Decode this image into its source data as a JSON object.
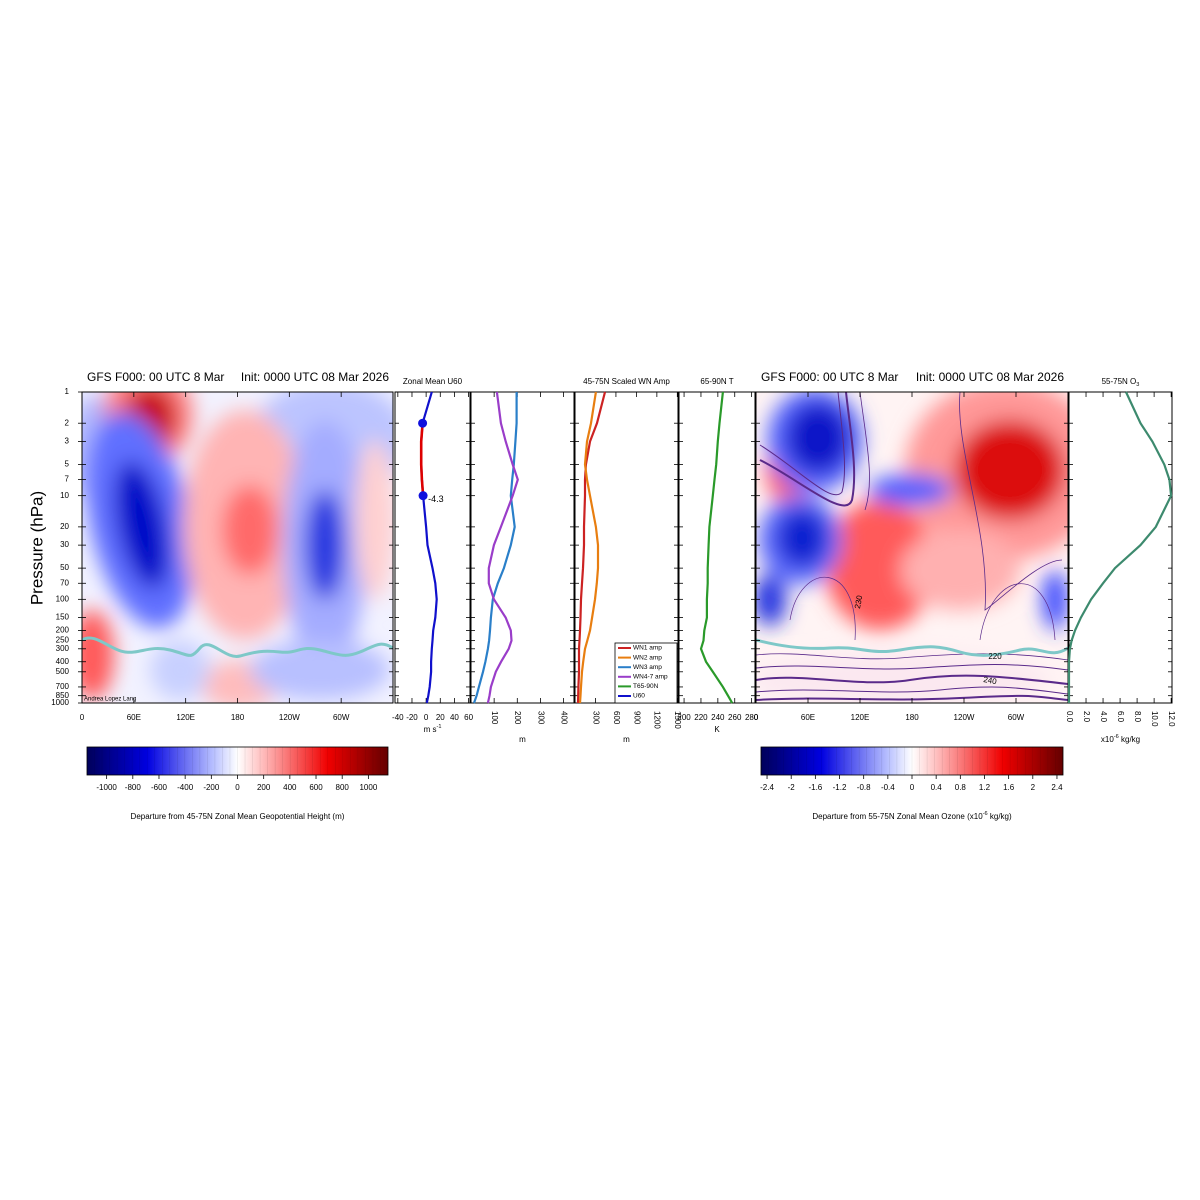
{
  "pressure_axis": {
    "label": "Pressure (hPa)",
    "log": true,
    "ylim": [
      1000,
      1
    ],
    "yticks": [
      1,
      2,
      3,
      5,
      7,
      10,
      20,
      30,
      50,
      70,
      100,
      150,
      200,
      250,
      300,
      400,
      500,
      700,
      850,
      1000
    ]
  },
  "levels": [
    1,
    2,
    3,
    5,
    7,
    10,
    20,
    30,
    50,
    70,
    100,
    150,
    200,
    250,
    300,
    400,
    500,
    700,
    850,
    1000
  ],
  "chart_data": [
    {
      "type": "contour",
      "title_left": "GFS F000: 00 UTC 8 Mar",
      "title_right": "Init: 0000 UTC 08 Mar 2026",
      "credit": "Andrea Lopez Lang",
      "xlim": [
        0,
        360
      ],
      "xticks": [
        0,
        {
          "value": 60,
          "label": "60E"
        },
        {
          "value": 120,
          "label": "120E"
        },
        180,
        {
          "value": 240,
          "label": "120W"
        },
        {
          "value": 300,
          "label": "60W"
        }
      ],
      "tropopause_color": "#7ec8c8",
      "colorbar": {
        "lim": [
          -1150,
          1150
        ],
        "ticks": [
          -1000,
          -800,
          -600,
          -400,
          -200,
          0,
          200,
          400,
          600,
          800,
          1000
        ],
        "label": {
          "text": "Departure from 45-75N Zonal Mean Geopotential Height (m)"
        }
      }
    },
    {
      "type": "line",
      "title": "Zonal Mean U60",
      "xlim": [
        -44,
        62
      ],
      "xticks": [
        -40,
        -20,
        0,
        20,
        40,
        60
      ],
      "xlabel": {
        "text": "m s",
        "sup": "-1"
      },
      "negative_color": "#dd0000",
      "series": [
        {
          "name": "U60",
          "color": "#1010cc",
          "values": [
            8,
            -5,
            -7,
            -7,
            -6,
            -4.3,
            0,
            2,
            9,
            13,
            15,
            13,
            10,
            9,
            8,
            7,
            7,
            5,
            3,
            1
          ]
        }
      ]
    },
    {
      "type": "line",
      "xlim": [
        0,
        445
      ],
      "xticks": [
        100,
        200,
        300,
        400
      ],
      "xtick_rotate": true,
      "xlabel": {
        "text": "m"
      },
      "series": [
        {
          "name": "WN3 amp",
          "color": "#2a7fc9",
          "values": [
            197,
            197,
            192,
            185,
            178,
            172,
            189,
            172,
            142,
            116,
            94,
            86,
            82,
            78,
            73,
            62,
            52,
            34,
            24,
            13
          ]
        },
        {
          "name": "WN4-7 amp",
          "color": "#9a3dc9",
          "values": [
            112,
            129,
            150,
            180,
            202,
            180,
            129,
            99,
            77,
            77,
            99,
            150,
            172,
            175,
            163,
            130,
            107,
            86,
            80,
            73
          ]
        }
      ]
    },
    {
      "type": "line",
      "title": "45-75N Scaled WN Amp",
      "xlim": [
        0,
        1510
      ],
      "xticks": [
        300,
        600,
        900,
        1200,
        1500
      ],
      "xtick_rotate": true,
      "xlabel": {
        "text": "m"
      },
      "series": [
        {
          "name": "WN1 amp",
          "color": "#cc2222",
          "values": [
            440,
            322,
            220,
            160,
            146,
            146,
            132,
            132,
            117,
            102,
            88,
            80,
            73,
            66,
            59,
            59,
            59,
            50,
            47,
            44
          ]
        },
        {
          "name": "WN2 amp",
          "color": "#e87e10",
          "values": [
            307,
            234,
            176,
            146,
            176,
            220,
            307,
            337,
            337,
            320,
            293,
            250,
            220,
            180,
            146,
            120,
            102,
            88,
            80,
            73
          ]
        }
      ]
    },
    {
      "type": "line",
      "title": "65-90N T",
      "xlim": [
        194,
        284
      ],
      "xticks": [
        200,
        220,
        240,
        260,
        280
      ],
      "xlabel": {
        "text": "K"
      },
      "series": [
        {
          "name": "T65-90N",
          "color": "#2a9a2a",
          "values": [
            246,
            242,
            240,
            238,
            236,
            234,
            230,
            229,
            228,
            228,
            227,
            227,
            224,
            223,
            220,
            226,
            234,
            246,
            252,
            257
          ]
        }
      ]
    },
    {
      "type": "contour",
      "title_left": "GFS F000: 00 UTC 8 Mar",
      "title_right": "Init: 0000 UTC 08 Mar 2026",
      "xlim": [
        0,
        360
      ],
      "xticks": [
        0,
        {
          "value": 60,
          "label": "60E"
        },
        {
          "value": 120,
          "label": "120E"
        },
        180,
        {
          "value": 240,
          "label": "120W"
        },
        {
          "value": 300,
          "label": "60W"
        }
      ],
      "tropopause_color": "#7ec8c8",
      "contour_labels": [
        230,
        220,
        240
      ],
      "colorbar": {
        "lim": [
          -2.5,
          2.5
        ],
        "ticks": [
          -2.4,
          -2,
          -1.6,
          -1.2,
          -0.8,
          -0.4,
          0,
          0.4,
          0.8,
          1.2,
          1.6,
          2,
          2.4
        ],
        "label": {
          "text": "Departure from 55-75N Zonal Mean Ozone (x10",
          "sup": "-6",
          "tail": " kg/kg)"
        }
      }
    },
    {
      "type": "line",
      "title": {
        "text": "55-75N O",
        "sub": "3"
      },
      "xlim": [
        0,
        12.1
      ],
      "xticks": [
        {
          "value": 0,
          "label": "0.0"
        },
        {
          "value": 2,
          "label": "2.0"
        },
        {
          "value": 4,
          "label": "4.0"
        },
        {
          "value": 6,
          "label": "6.0"
        },
        {
          "value": 8,
          "label": "8.0"
        },
        {
          "value": 10,
          "label": "10.0"
        },
        {
          "value": 12,
          "label": "12.0"
        }
      ],
      "xtick_rotate": true,
      "xlabel": {
        "text": "x10",
        "sup": "-6",
        "tail": " kg/kg"
      },
      "series": [
        {
          "color": "#3d8a6e",
          "values": [
            6.7,
            8.4,
            9.8,
            11.2,
            11.8,
            12.0,
            10.2,
            8.4,
            5.4,
            4.0,
            2.6,
            1.4,
            0.7,
            0.3,
            0.1,
            0,
            0,
            0,
            0,
            0
          ]
        }
      ]
    }
  ]
}
